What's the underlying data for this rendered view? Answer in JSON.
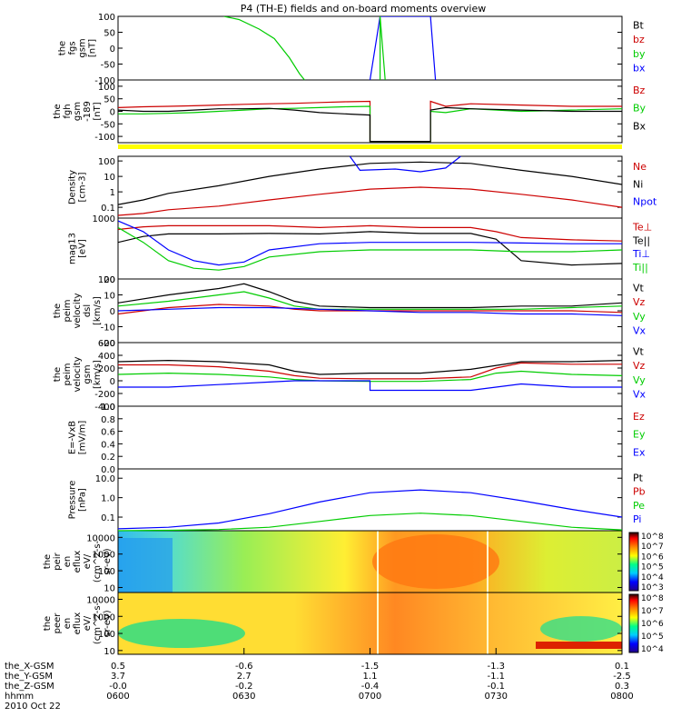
{
  "chart_data": {
    "type": "line",
    "title": "P4 (TH-E) fields and on-board moments overview",
    "date": "2010 Oct 22",
    "time_axis": {
      "ephemeris_labels": [
        "the_X-GSM",
        "the_Y-GSM",
        "the_Z-GSM",
        "hhmm"
      ],
      "times": [
        "0600",
        "0630",
        "0700",
        "0730",
        "0800"
      ],
      "x_gsm": [
        "0.5",
        "-0.6",
        "-1.5",
        "-1.3",
        "0.1"
      ],
      "y_gsm": [
        "3.7",
        "2.7",
        "1.1",
        "-1.1",
        "-2.5"
      ],
      "z_gsm": [
        "-0.0",
        "-0.2",
        "-0.4",
        "-0.1",
        "0.3"
      ]
    },
    "colors": {
      "black": "#000000",
      "red": "#cc0000",
      "green": "#00cc00",
      "blue": "#0000ff",
      "yellow": "#ffff00"
    },
    "panels": [
      {
        "id": "fgs",
        "ylabel": [
          "the",
          "fgs",
          "gsm",
          "[nT]"
        ],
        "ticks": [
          "100",
          "50",
          "0",
          "-50",
          "-100"
        ],
        "ylim": [
          -100,
          100
        ],
        "scale": "linear",
        "legend": [
          {
            "text": "Bt",
            "color": "black"
          },
          {
            "text": "bz",
            "color": "red"
          },
          {
            "text": "by",
            "color": "green"
          },
          {
            "text": "bx",
            "color": "blue"
          }
        ]
      },
      {
        "id": "fgh",
        "ylabel": [
          "the",
          "fgh",
          "gsm",
          "-189",
          "[nT]"
        ],
        "ticks": [
          "100",
          "50",
          "0",
          "-50",
          "-100"
        ],
        "ylim": [
          -125,
          125
        ],
        "scale": "linear",
        "legend": [
          {
            "text": "Bz",
            "color": "red"
          },
          {
            "text": "By",
            "color": "green"
          },
          {
            "text": "Bx",
            "color": "black"
          }
        ]
      },
      {
        "id": "density",
        "ylabel": [
          "Density",
          "[cm-3]"
        ],
        "ticks": [
          "100",
          "10",
          "1",
          "0.1"
        ],
        "ylim": [
          0.02,
          200
        ],
        "scale": "log",
        "legend": [
          {
            "text": "Ne",
            "color": "red"
          },
          {
            "text": "Ni",
            "color": "black"
          },
          {
            "text": "Npot",
            "color": "blue"
          }
        ]
      },
      {
        "id": "temperature",
        "ylabel": [
          "mag13",
          "[eV]"
        ],
        "ticks": [
          "1000",
          "100"
        ],
        "ylim": [
          100,
          1000
        ],
        "scale": "log",
        "legend": [
          {
            "text": "Te⊥",
            "color": "red"
          },
          {
            "text": "Te||",
            "color": "black"
          },
          {
            "text": "Ti⊥",
            "color": "blue"
          },
          {
            "text": "Ti||",
            "color": "green"
          }
        ]
      },
      {
        "id": "velocity_dsl",
        "ylabel": [
          "the",
          "peim",
          "velocity",
          "dsl",
          "[km/s]"
        ],
        "ticks": [
          "20",
          "10",
          "0",
          "-10",
          "-20"
        ],
        "ylim": [
          -20,
          20
        ],
        "scale": "linear",
        "legend": [
          {
            "text": "Vt",
            "color": "black"
          },
          {
            "text": "Vz",
            "color": "red"
          },
          {
            "text": "Vy",
            "color": "green"
          },
          {
            "text": "Vx",
            "color": "blue"
          }
        ]
      },
      {
        "id": "velocity_gsm",
        "ylabel": [
          "the",
          "peim",
          "velocity",
          "gsm",
          "[km/s]"
        ],
        "ticks": [
          "600",
          "400",
          "200",
          "0",
          "-200",
          "-400"
        ],
        "ylim": [
          -400,
          600
        ],
        "scale": "linear",
        "legend": [
          {
            "text": "Vt",
            "color": "black"
          },
          {
            "text": "Vz",
            "color": "red"
          },
          {
            "text": "Vy",
            "color": "green"
          },
          {
            "text": "Vx",
            "color": "blue"
          }
        ]
      },
      {
        "id": "efield",
        "ylabel": [
          "E=-VxB",
          "[mV/m]"
        ],
        "ticks": [
          "1.0",
          "0.8",
          "0.6",
          "0.4",
          "0.2",
          "0.0"
        ],
        "ylim": [
          0,
          1
        ],
        "scale": "linear",
        "legend": [
          {
            "text": "Ez",
            "color": "red"
          },
          {
            "text": "Ey",
            "color": "green"
          },
          {
            "text": "Ex",
            "color": "blue"
          }
        ]
      },
      {
        "id": "pressure",
        "ylabel": [
          "Pressure",
          "[nPa]"
        ],
        "ticks": [
          "10.0",
          "1.0",
          "0.1"
        ],
        "ylim": [
          0.02,
          30
        ],
        "scale": "log",
        "legend": [
          {
            "text": "Pt",
            "color": "black"
          },
          {
            "text": "Pb",
            "color": "red"
          },
          {
            "text": "Pe",
            "color": "green"
          },
          {
            "text": "Pi",
            "color": "blue"
          }
        ]
      },
      {
        "id": "ion_spec",
        "type": "heatmap",
        "ylabel": [
          "the",
          "peir",
          "en",
          "eflux",
          "eV/",
          "(cm^2-s-",
          "sr-eV)"
        ],
        "ticks": [
          "10000",
          "1000",
          "100",
          "10"
        ],
        "ylim": [
          5,
          25000
        ],
        "scale": "log",
        "colorbar_ticks": [
          "10^8",
          "10^7",
          "10^6",
          "10^5",
          "10^4",
          "10^3"
        ]
      },
      {
        "id": "elec_spec",
        "type": "heatmap",
        "ylabel": [
          "the",
          "peer",
          "en",
          "eflux",
          "eV/",
          "(cm^2-s-",
          "sr-eV)"
        ],
        "ticks": [
          "10000",
          "1000",
          "100",
          "10"
        ],
        "ylim": [
          6,
          25000
        ],
        "scale": "log",
        "colorbar_ticks": [
          "10^8",
          "10^7",
          "10^6",
          "10^5",
          "10^4"
        ]
      }
    ],
    "series": {
      "fgs_bx": {
        "color": "blue",
        "t": [
          0.5,
          0.52,
          0.53,
          0.61,
          0.62,
          0.63
        ],
        "v": [
          -100,
          100,
          100,
          100,
          100,
          -100
        ]
      },
      "fgs_by": {
        "color": "green",
        "t": [
          0.21,
          0.24,
          0.28,
          0.31,
          0.34,
          0.36,
          0.37
        ],
        "v": [
          100,
          90,
          60,
          30,
          -30,
          -80,
          -100
        ]
      },
      "fgs_by_spike": {
        "color": "green",
        "t": [
          0.52,
          0.52,
          0.53
        ],
        "v": [
          -100,
          100,
          -100
        ]
      },
      "fgh_bz": {
        "color": "red",
        "t": [
          0,
          0.05,
          0.1,
          0.15,
          0.2,
          0.25,
          0.3,
          0.35,
          0.4,
          0.45,
          0.5,
          0.5,
          0.62,
          0.62,
          0.65,
          0.7,
          0.8,
          0.9,
          1.0
        ],
        "v": [
          15,
          18,
          20,
          22,
          25,
          28,
          30,
          32,
          35,
          38,
          40,
          -120,
          -120,
          40,
          20,
          30,
          25,
          20,
          20
        ]
      },
      "fgh_by": {
        "color": "green",
        "t": [
          0,
          0.05,
          0.1,
          0.15,
          0.2,
          0.25,
          0.3,
          0.35,
          0.4,
          0.45,
          0.5,
          0.5,
          0.62,
          0.62,
          0.65,
          0.7,
          0.8,
          0.9,
          1.0
        ],
        "v": [
          -10,
          -10,
          -8,
          -5,
          0,
          5,
          10,
          12,
          15,
          18,
          20,
          -120,
          -120,
          0,
          -5,
          10,
          0,
          5,
          10
        ]
      },
      "fgh_bx": {
        "color": "black",
        "t": [
          0,
          0.05,
          0.1,
          0.15,
          0.2,
          0.25,
          0.3,
          0.35,
          0.4,
          0.45,
          0.5,
          0.5,
          0.62,
          0.62,
          0.65,
          0.7,
          0.8,
          0.9,
          1.0
        ],
        "v": [
          5,
          0,
          0,
          5,
          10,
          10,
          12,
          5,
          -5,
          -10,
          -15,
          -120,
          -120,
          5,
          15,
          10,
          5,
          0,
          0
        ]
      },
      "density_ni": {
        "color": "black",
        "t": [
          0,
          0.05,
          0.1,
          0.2,
          0.3,
          0.4,
          0.5,
          0.6,
          0.7,
          0.8,
          0.9,
          1.0
        ],
        "v": [
          0.15,
          0.3,
          0.8,
          2.5,
          10,
          30,
          70,
          85,
          70,
          25,
          10,
          3
        ]
      },
      "density_ne": {
        "color": "red",
        "t": [
          0,
          0.05,
          0.1,
          0.2,
          0.3,
          0.4,
          0.5,
          0.6,
          0.7,
          0.8,
          0.9,
          1.0
        ],
        "v": [
          0.03,
          0.04,
          0.07,
          0.12,
          0.3,
          0.7,
          1.5,
          2,
          1.5,
          0.7,
          0.3,
          0.1
        ]
      },
      "density_npot": {
        "color": "blue",
        "t": [
          0.46,
          0.48,
          0.55,
          0.6,
          0.65,
          0.68
        ],
        "v": [
          200,
          25,
          30,
          20,
          35,
          200
        ]
      },
      "temp_te_perp": {
        "color": "red",
        "t": [
          0,
          0.05,
          0.1,
          0.2,
          0.3,
          0.4,
          0.5,
          0.6,
          0.7,
          0.75,
          0.8,
          0.9,
          1.0
        ],
        "v": [
          650,
          720,
          750,
          750,
          750,
          700,
          750,
          700,
          700,
          600,
          480,
          440,
          420
        ]
      },
      "temp_te_par": {
        "color": "black",
        "t": [
          0,
          0.05,
          0.1,
          0.2,
          0.3,
          0.4,
          0.5,
          0.6,
          0.7,
          0.75,
          0.8,
          0.9,
          1.0
        ],
        "v": [
          400,
          500,
          550,
          550,
          560,
          550,
          600,
          560,
          560,
          450,
          200,
          170,
          180
        ]
      },
      "temp_ti_perp": {
        "color": "blue",
        "t": [
          0,
          0.05,
          0.1,
          0.15,
          0.2,
          0.25,
          0.3,
          0.4,
          0.5,
          0.6,
          0.7,
          0.8,
          0.9,
          1.0
        ],
        "v": [
          900,
          600,
          300,
          200,
          170,
          190,
          300,
          380,
          400,
          400,
          400,
          390,
          380,
          380
        ]
      },
      "temp_ti_par": {
        "color": "green",
        "t": [
          0,
          0.05,
          0.1,
          0.15,
          0.2,
          0.25,
          0.3,
          0.4,
          0.5,
          0.6,
          0.7,
          0.8,
          0.9,
          1.0
        ],
        "v": [
          700,
          400,
          200,
          150,
          140,
          160,
          230,
          280,
          300,
          300,
          300,
          280,
          280,
          300
        ]
      },
      "vdsl_vt": {
        "color": "black",
        "t": [
          0,
          0.1,
          0.2,
          0.25,
          0.3,
          0.35,
          0.4,
          0.5,
          0.6,
          0.7,
          0.8,
          0.9,
          1.0
        ],
        "v": [
          5,
          10,
          14,
          17,
          12,
          6,
          3,
          2,
          2,
          2,
          3,
          3,
          5
        ]
      },
      "vdsl_vy": {
        "color": "green",
        "t": [
          0,
          0.1,
          0.2,
          0.25,
          0.3,
          0.35,
          0.4,
          0.5,
          0.6,
          0.7,
          0.8,
          0.9,
          1.0
        ],
        "v": [
          3,
          6,
          10,
          12,
          8,
          3,
          1,
          1,
          1,
          1,
          1,
          2,
          3
        ]
      },
      "vdsl_vz": {
        "color": "red",
        "t": [
          0,
          0.1,
          0.2,
          0.3,
          0.35,
          0.4,
          0.5,
          0.6,
          0.7,
          0.8,
          0.9,
          1.0
        ],
        "v": [
          -2,
          2,
          4,
          3,
          1,
          0,
          0,
          0,
          0,
          0,
          0,
          -1
        ]
      },
      "vdsl_vx": {
        "color": "blue",
        "t": [
          0,
          0.1,
          0.2,
          0.3,
          0.4,
          0.5,
          0.6,
          0.7,
          0.8,
          0.9,
          1.0
        ],
        "v": [
          0,
          1,
          2,
          2,
          1,
          0,
          -1,
          -1,
          -2,
          -2,
          -3
        ]
      },
      "vgsm_vt": {
        "color": "black",
        "t": [
          0,
          0.1,
          0.2,
          0.3,
          0.35,
          0.4,
          0.5,
          0.6,
          0.7,
          0.8,
          0.9,
          1.0
        ],
        "v": [
          300,
          320,
          300,
          250,
          150,
          100,
          120,
          120,
          180,
          300,
          300,
          320
        ]
      },
      "vgsm_vz": {
        "color": "red",
        "t": [
          0,
          0.1,
          0.2,
          0.3,
          0.35,
          0.4,
          0.5,
          0.6,
          0.7,
          0.75,
          0.8,
          0.9,
          1.0
        ],
        "v": [
          250,
          250,
          220,
          150,
          80,
          40,
          30,
          30,
          60,
          200,
          280,
          260,
          260
        ]
      },
      "vgsm_vy": {
        "color": "green",
        "t": [
          0,
          0.1,
          0.2,
          0.3,
          0.35,
          0.4,
          0.5,
          0.6,
          0.7,
          0.75,
          0.8,
          0.9,
          1.0
        ],
        "v": [
          100,
          120,
          100,
          60,
          20,
          0,
          -10,
          -10,
          20,
          120,
          150,
          100,
          80
        ]
      },
      "vgsm_vx": {
        "color": "blue",
        "t": [
          0,
          0.1,
          0.2,
          0.3,
          0.35,
          0.4,
          0.5,
          0.5,
          0.6,
          0.7,
          0.75,
          0.8,
          0.9,
          1.0
        ],
        "v": [
          -100,
          -100,
          -60,
          -20,
          0,
          0,
          0,
          -150,
          -150,
          -150,
          -100,
          -50,
          -100,
          -100
        ]
      },
      "pressure_pi": {
        "color": "blue",
        "t": [
          0,
          0.1,
          0.2,
          0.3,
          0.4,
          0.5,
          0.6,
          0.7,
          0.8,
          0.9,
          1.0
        ],
        "v": [
          0.025,
          0.03,
          0.05,
          0.15,
          0.6,
          1.8,
          2.5,
          1.8,
          0.7,
          0.25,
          0.1
        ]
      },
      "pressure_pe": {
        "color": "green",
        "t": [
          0,
          0.1,
          0.2,
          0.3,
          0.4,
          0.5,
          0.6,
          0.7,
          0.8,
          0.9,
          1.0
        ],
        "v": [
          0.02,
          0.021,
          0.023,
          0.03,
          0.06,
          0.12,
          0.16,
          0.12,
          0.06,
          0.03,
          0.022
        ]
      }
    }
  }
}
